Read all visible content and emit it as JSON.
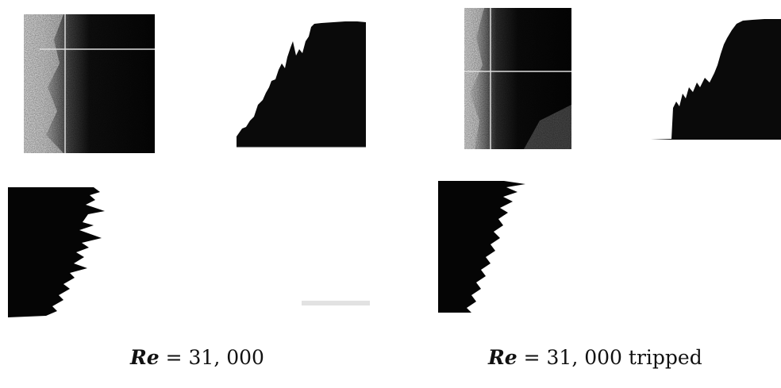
{
  "figure": {
    "panels": [
      {
        "caption_var": "Re",
        "caption_rest": " = 31, 000"
      },
      {
        "caption_var": "Re",
        "caption_rest": " = 31, 000 tripped"
      }
    ]
  }
}
